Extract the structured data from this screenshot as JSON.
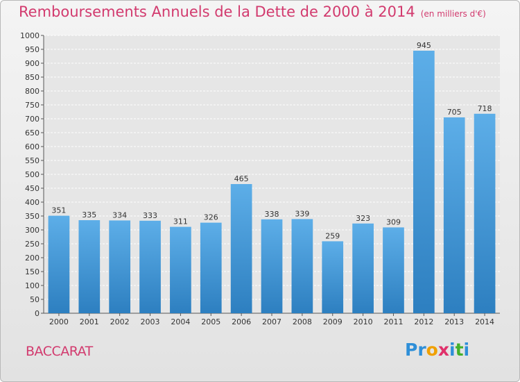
{
  "header": {
    "title": "Remboursements Annuels de la Dette de 2000 à 2014",
    "unit": "(en milliers d'€)"
  },
  "commune": "BACCARAT",
  "logo": {
    "letters": [
      "P",
      "r",
      "o",
      "x",
      "i",
      "t",
      "i"
    ],
    "colors": [
      "#2e8fd8",
      "#2e8fd8",
      "#f0a000",
      "#e0306a",
      "#2e8fd8",
      "#43b02a",
      "#2e8fd8"
    ]
  },
  "colors": {
    "bar_top": "#5daee8",
    "bar_bottom": "#2d7fc0",
    "grid": "#ffffff",
    "accent": "#d23a6e"
  },
  "chart_data": {
    "type": "bar",
    "title": "Remboursements Annuels de la Dette de 2000 à 2014",
    "xlabel": "",
    "ylabel": "",
    "categories": [
      "2000",
      "2001",
      "2002",
      "2003",
      "2004",
      "2005",
      "2006",
      "2007",
      "2008",
      "2009",
      "2010",
      "2011",
      "2012",
      "2013",
      "2014"
    ],
    "values": [
      351,
      335,
      334,
      333,
      311,
      326,
      465,
      338,
      339,
      259,
      323,
      309,
      945,
      705,
      718
    ],
    "ylim": [
      0,
      1000
    ],
    "yticks": [
      0,
      50,
      100,
      150,
      200,
      250,
      300,
      350,
      400,
      450,
      500,
      550,
      600,
      650,
      700,
      750,
      800,
      850,
      900,
      950,
      1000
    ],
    "grid": true
  }
}
